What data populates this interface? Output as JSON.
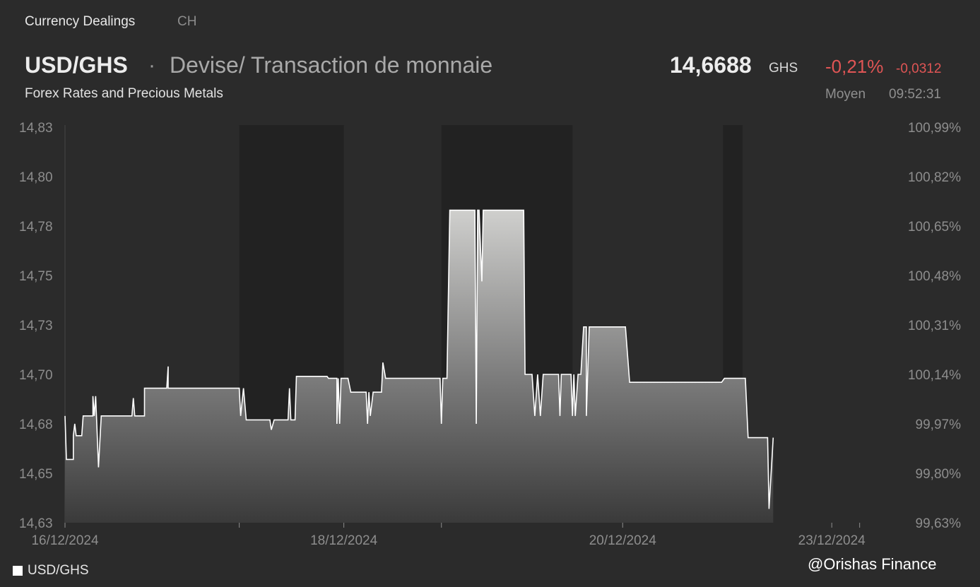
{
  "header": {
    "tab_primary": "Currency Dealings",
    "tab_secondary": "CH",
    "symbol": "USD/GHS",
    "separator": "·",
    "description": "Devise/ Transaction de monnaie",
    "subtitle": "Forex Rates and Precious Metals",
    "price": "14,6688",
    "price_unit": "GHS",
    "change_percent": "-0,21%",
    "change_abs": "-0,0312",
    "price_mode": "Moyen",
    "time": "09:52:31"
  },
  "legend": {
    "label": "USD/GHS"
  },
  "watermark": "@Orishas Finance",
  "colors": {
    "negative": "#e05555",
    "line": "#ffffff",
    "background": "#2b2b2b"
  },
  "chart_data": {
    "type": "area",
    "title": "",
    "xlabel": "",
    "ylabel": "",
    "ylim": [
      14.63,
      14.83
    ],
    "y_ticks": [
      "14,63",
      "14,65",
      "14,68",
      "14,70",
      "14,73",
      "14,75",
      "14,78",
      "14,80",
      "14,83"
    ],
    "y_tick_values": [
      14.63,
      14.655,
      14.68,
      14.705,
      14.73,
      14.755,
      14.78,
      14.805,
      14.83
    ],
    "y2_ticks": [
      "99,63%",
      "99,80%",
      "99,97%",
      "100,14%",
      "100,31%",
      "100,48%",
      "100,65%",
      "100,82%",
      "100,99%"
    ],
    "x_ticks": [
      {
        "label": "16/12/2024",
        "x": 0.0
      },
      {
        "label": "18/12/2024",
        "x": 2.0
      },
      {
        "label": "20/12/2024",
        "x": 4.0
      },
      {
        "label": "23/12/2024",
        "x": 5.5
      }
    ],
    "x_minor_ticks": [
      1.25,
      2.7,
      5.7
    ],
    "xlim": [
      0.0,
      5.95
    ],
    "shaded_bands": [
      [
        1.25,
        2.0
      ],
      [
        2.7,
        3.64
      ],
      [
        4.72,
        4.86
      ]
    ],
    "grid": false,
    "legend_position": "bottom-left",
    "series": [
      {
        "name": "USD/GHS",
        "points": [
          [
            0.0,
            14.684
          ],
          [
            0.01,
            14.662
          ],
          [
            0.06,
            14.662
          ],
          [
            0.06,
            14.674
          ],
          [
            0.07,
            14.68
          ],
          [
            0.08,
            14.674
          ],
          [
            0.12,
            14.674
          ],
          [
            0.13,
            14.684
          ],
          [
            0.2,
            14.684
          ],
          [
            0.2,
            14.694
          ],
          [
            0.21,
            14.684
          ],
          [
            0.22,
            14.694
          ],
          [
            0.24,
            14.658
          ],
          [
            0.26,
            14.684
          ],
          [
            0.48,
            14.684
          ],
          [
            0.49,
            14.693
          ],
          [
            0.5,
            14.684
          ],
          [
            0.57,
            14.684
          ],
          [
            0.57,
            14.698
          ],
          [
            0.73,
            14.698
          ],
          [
            0.74,
            14.709
          ],
          [
            0.74,
            14.698
          ],
          [
            1.25,
            14.698
          ],
          [
            1.26,
            14.684
          ],
          [
            1.28,
            14.698
          ],
          [
            1.3,
            14.682
          ],
          [
            1.47,
            14.682
          ],
          [
            1.48,
            14.677
          ],
          [
            1.5,
            14.682
          ],
          [
            1.6,
            14.682
          ],
          [
            1.61,
            14.698
          ],
          [
            1.62,
            14.682
          ],
          [
            1.65,
            14.682
          ],
          [
            1.66,
            14.704
          ],
          [
            1.88,
            14.704
          ],
          [
            1.89,
            14.703
          ],
          [
            1.95,
            14.703
          ],
          [
            1.95,
            14.68
          ],
          [
            1.96,
            14.703
          ],
          [
            1.97,
            14.68
          ],
          [
            1.98,
            14.703
          ],
          [
            2.03,
            14.703
          ],
          [
            2.05,
            14.696
          ],
          [
            2.16,
            14.696
          ],
          [
            2.17,
            14.68
          ],
          [
            2.18,
            14.696
          ],
          [
            2.19,
            14.684
          ],
          [
            2.21,
            14.696
          ],
          [
            2.27,
            14.696
          ],
          [
            2.28,
            14.711
          ],
          [
            2.3,
            14.703
          ],
          [
            2.69,
            14.703
          ],
          [
            2.7,
            14.68
          ],
          [
            2.71,
            14.703
          ],
          [
            2.74,
            14.703
          ],
          [
            2.76,
            14.788
          ],
          [
            2.94,
            14.788
          ],
          [
            2.95,
            14.68
          ],
          [
            2.96,
            14.788
          ],
          [
            2.97,
            14.788
          ],
          [
            2.99,
            14.752
          ],
          [
            3.0,
            14.788
          ],
          [
            3.29,
            14.788
          ],
          [
            3.3,
            14.705
          ],
          [
            3.35,
            14.705
          ],
          [
            3.37,
            14.684
          ],
          [
            3.39,
            14.705
          ],
          [
            3.41,
            14.684
          ],
          [
            3.43,
            14.705
          ],
          [
            3.54,
            14.705
          ],
          [
            3.55,
            14.684
          ],
          [
            3.56,
            14.705
          ],
          [
            3.63,
            14.705
          ],
          [
            3.64,
            14.684
          ],
          [
            3.65,
            14.705
          ],
          [
            3.66,
            14.684
          ],
          [
            3.68,
            14.705
          ],
          [
            3.7,
            14.705
          ],
          [
            3.72,
            14.729
          ],
          [
            3.74,
            14.729
          ],
          [
            3.74,
            14.684
          ],
          [
            3.76,
            14.729
          ],
          [
            4.02,
            14.729
          ],
          [
            4.05,
            14.701
          ],
          [
            4.71,
            14.701
          ],
          [
            4.73,
            14.703
          ],
          [
            4.88,
            14.703
          ],
          [
            4.9,
            14.673
          ],
          [
            5.04,
            14.673
          ],
          [
            5.05,
            14.637
          ],
          [
            5.08,
            14.673
          ]
        ]
      }
    ]
  }
}
